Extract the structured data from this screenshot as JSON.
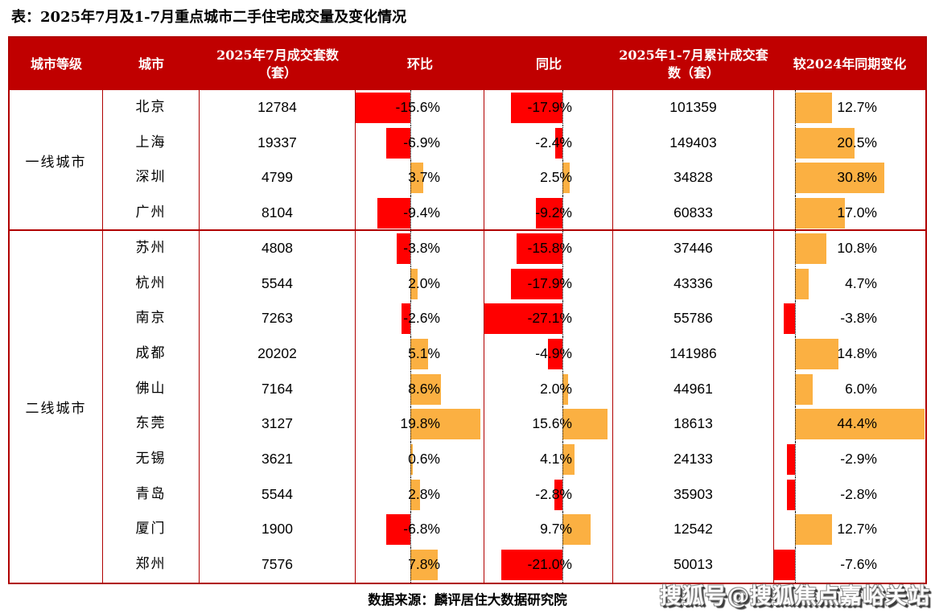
{
  "title": "表：2025年7月及1-7月重点城市二手住宅成交量及变化情况",
  "source_note": "数据来源：麟评居住大数据研究院",
  "watermark": "搜狐号@搜狐焦点嘉峪关站",
  "colors": {
    "header_bg": "#c00000",
    "header_text": "#ffffff",
    "border": "#b00000",
    "negative_bar": "#ff0000",
    "positive_bar": "#fbb042",
    "body_text": "#000000"
  },
  "chart_data": {
    "type": "table",
    "title": "表：2025年7月及1-7月重点城市二手住宅成交量及变化情况",
    "columns": [
      "城市等级",
      "城市",
      "2025年7月成交套数（套）",
      "环比",
      "同比",
      "2025年1-7月累计成交套数（套）",
      "较2024年同期变化"
    ],
    "bar_columns": [
      "环比",
      "同比",
      "较2024年同期变化"
    ],
    "bar_style": {
      "negative_color": "#ff0000",
      "positive_color": "#fbb042",
      "baseline": "dotted"
    },
    "groups": [
      {
        "tier": "一线城市",
        "rows": [
          {
            "city": "北京",
            "july_sales": 12784,
            "mom_pct": -15.6,
            "yoy_pct": -17.9,
            "cum_sales": 101359,
            "vs_2024_pct": 12.7
          },
          {
            "city": "上海",
            "july_sales": 19337,
            "mom_pct": -6.9,
            "yoy_pct": -2.4,
            "cum_sales": 149403,
            "vs_2024_pct": 20.5
          },
          {
            "city": "深圳",
            "july_sales": 4799,
            "mom_pct": 3.7,
            "yoy_pct": 2.5,
            "cum_sales": 34828,
            "vs_2024_pct": 30.8
          },
          {
            "city": "广州",
            "july_sales": 8104,
            "mom_pct": -9.4,
            "yoy_pct": -9.2,
            "cum_sales": 60833,
            "vs_2024_pct": 17.0
          }
        ]
      },
      {
        "tier": "二线城市",
        "rows": [
          {
            "city": "苏州",
            "july_sales": 4808,
            "mom_pct": -3.8,
            "yoy_pct": -15.8,
            "cum_sales": 37446,
            "vs_2024_pct": 10.8
          },
          {
            "city": "杭州",
            "july_sales": 5544,
            "mom_pct": 2.0,
            "yoy_pct": -17.9,
            "cum_sales": 43336,
            "vs_2024_pct": 4.7
          },
          {
            "city": "南京",
            "july_sales": 7263,
            "mom_pct": -2.6,
            "yoy_pct": -27.1,
            "cum_sales": 55786,
            "vs_2024_pct": -3.8
          },
          {
            "city": "成都",
            "july_sales": 20202,
            "mom_pct": 5.1,
            "yoy_pct": -4.9,
            "cum_sales": 141986,
            "vs_2024_pct": 14.8
          },
          {
            "city": "佛山",
            "july_sales": 7164,
            "mom_pct": 8.6,
            "yoy_pct": 2.0,
            "cum_sales": 44961,
            "vs_2024_pct": 6.0
          },
          {
            "city": "东莞",
            "july_sales": 3127,
            "mom_pct": 19.8,
            "yoy_pct": 15.6,
            "cum_sales": 18613,
            "vs_2024_pct": 44.4
          },
          {
            "city": "无锡",
            "july_sales": 3621,
            "mom_pct": 0.6,
            "yoy_pct": 4.1,
            "cum_sales": 24133,
            "vs_2024_pct": -2.9
          },
          {
            "city": "青岛",
            "july_sales": 5544,
            "mom_pct": 2.8,
            "yoy_pct": -2.8,
            "cum_sales": 35903,
            "vs_2024_pct": -2.8
          },
          {
            "city": "厦门",
            "july_sales": 1900,
            "mom_pct": -6.8,
            "yoy_pct": 9.7,
            "cum_sales": 12542,
            "vs_2024_pct": 12.7
          },
          {
            "city": "郑州",
            "july_sales": 7576,
            "mom_pct": 7.8,
            "yoy_pct": -21.0,
            "cum_sales": 50013,
            "vs_2024_pct": -7.6
          }
        ]
      }
    ]
  }
}
